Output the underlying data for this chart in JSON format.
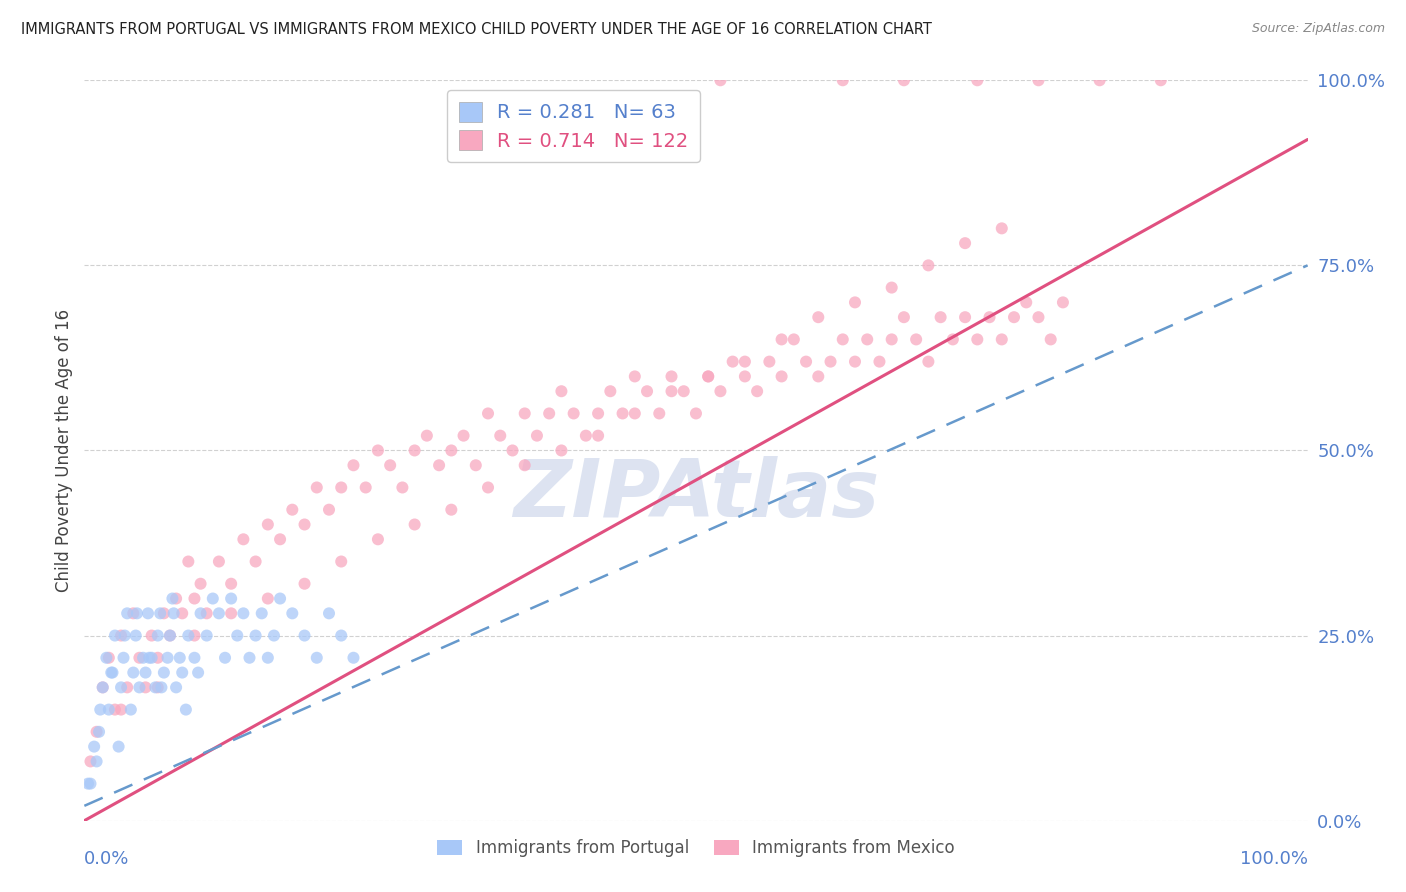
{
  "title": "IMMIGRANTS FROM PORTUGAL VS IMMIGRANTS FROM MEXICO CHILD POVERTY UNDER THE AGE OF 16 CORRELATION CHART",
  "source": "Source: ZipAtlas.com",
  "ylabel": "Child Poverty Under the Age of 16",
  "ytick_labels": [
    "0.0%",
    "25.0%",
    "50.0%",
    "75.0%",
    "100.0%"
  ],
  "ytick_values": [
    0,
    25,
    50,
    75,
    100
  ],
  "xtick_labels_bottom": [
    "0.0%",
    "100.0%"
  ],
  "xlim": [
    0,
    100
  ],
  "ylim": [
    0,
    100
  ],
  "portugal": {
    "R": 0.281,
    "N": 63,
    "color": "#a8c8f8",
    "line_color": "#6699cc",
    "scatter_alpha": 0.75,
    "marker_size": 75,
    "label": "Immigrants from Portugal",
    "reg_x0": 0,
    "reg_y0": 2,
    "reg_x1": 100,
    "reg_y1": 75
  },
  "mexico": {
    "R": 0.714,
    "N": 122,
    "color": "#f8a8c0",
    "line_color": "#e05080",
    "scatter_alpha": 0.75,
    "marker_size": 75,
    "label": "Immigrants from Mexico",
    "reg_x0": 0,
    "reg_y0": 0,
    "reg_x1": 100,
    "reg_y1": 92
  },
  "background_color": "#ffffff",
  "grid_color": "#cccccc",
  "right_axis_color": "#5580cc",
  "title_color": "#222222",
  "watermark_text": "ZIPAtlas",
  "watermark_color": "#aabbdd",
  "legend_box_color": "#ffffff",
  "portugal_x": [
    0.5,
    1.0,
    1.2,
    1.5,
    1.8,
    2.0,
    2.2,
    2.5,
    2.8,
    3.0,
    3.2,
    3.5,
    3.8,
    4.0,
    4.2,
    4.5,
    4.8,
    5.0,
    5.2,
    5.5,
    5.8,
    6.0,
    6.2,
    6.5,
    6.8,
    7.0,
    7.2,
    7.5,
    7.8,
    8.0,
    8.5,
    9.0,
    9.5,
    10.0,
    10.5,
    11.0,
    11.5,
    12.0,
    12.5,
    13.0,
    13.5,
    14.0,
    14.5,
    15.0,
    15.5,
    16.0,
    17.0,
    18.0,
    19.0,
    20.0,
    21.0,
    22.0,
    0.3,
    0.8,
    1.3,
    2.3,
    3.3,
    4.3,
    5.3,
    6.3,
    7.3,
    8.3,
    9.3
  ],
  "portugal_y": [
    5,
    8,
    12,
    18,
    22,
    15,
    20,
    25,
    10,
    18,
    22,
    28,
    15,
    20,
    25,
    18,
    22,
    20,
    28,
    22,
    18,
    25,
    28,
    20,
    22,
    25,
    30,
    18,
    22,
    20,
    25,
    22,
    28,
    25,
    30,
    28,
    22,
    30,
    25,
    28,
    22,
    25,
    28,
    22,
    25,
    30,
    28,
    25,
    22,
    28,
    25,
    22,
    5,
    10,
    15,
    20,
    25,
    28,
    22,
    18,
    28,
    15,
    20
  ],
  "mexico_x": [
    0.5,
    1.0,
    1.5,
    2.0,
    2.5,
    3.0,
    3.5,
    4.0,
    4.5,
    5.0,
    5.5,
    6.0,
    6.5,
    7.0,
    7.5,
    8.0,
    8.5,
    9.0,
    9.5,
    10.0,
    11.0,
    12.0,
    13.0,
    14.0,
    15.0,
    16.0,
    17.0,
    18.0,
    19.0,
    20.0,
    21.0,
    22.0,
    23.0,
    24.0,
    25.0,
    26.0,
    27.0,
    28.0,
    29.0,
    30.0,
    31.0,
    32.0,
    33.0,
    34.0,
    35.0,
    36.0,
    37.0,
    38.0,
    39.0,
    40.0,
    41.0,
    42.0,
    43.0,
    44.0,
    45.0,
    46.0,
    47.0,
    48.0,
    49.0,
    50.0,
    51.0,
    52.0,
    53.0,
    54.0,
    55.0,
    56.0,
    57.0,
    58.0,
    59.0,
    60.0,
    61.0,
    62.0,
    63.0,
    64.0,
    65.0,
    66.0,
    67.0,
    68.0,
    69.0,
    70.0,
    71.0,
    72.0,
    73.0,
    74.0,
    75.0,
    76.0,
    77.0,
    78.0,
    79.0,
    80.0,
    52.0,
    62.0,
    67.0,
    73.0,
    78.0,
    83.0,
    88.0,
    3.0,
    6.0,
    9.0,
    12.0,
    15.0,
    18.0,
    21.0,
    24.0,
    27.0,
    30.0,
    33.0,
    36.0,
    39.0,
    42.0,
    45.0,
    48.0,
    51.0,
    54.0,
    57.0,
    60.0,
    63.0,
    66.0,
    69.0,
    72.0,
    75.0
  ],
  "mexico_y": [
    8,
    12,
    18,
    22,
    15,
    25,
    18,
    28,
    22,
    18,
    25,
    22,
    28,
    25,
    30,
    28,
    35,
    30,
    32,
    28,
    35,
    32,
    38,
    35,
    40,
    38,
    42,
    40,
    45,
    42,
    45,
    48,
    45,
    50,
    48,
    45,
    50,
    52,
    48,
    50,
    52,
    48,
    55,
    52,
    50,
    55,
    52,
    55,
    58,
    55,
    52,
    55,
    58,
    55,
    60,
    58,
    55,
    60,
    58,
    55,
    60,
    58,
    62,
    60,
    58,
    62,
    60,
    65,
    62,
    60,
    62,
    65,
    62,
    65,
    62,
    65,
    68,
    65,
    62,
    68,
    65,
    68,
    65,
    68,
    65,
    68,
    70,
    68,
    65,
    70,
    100,
    100,
    100,
    100,
    100,
    100,
    100,
    15,
    18,
    25,
    28,
    30,
    32,
    35,
    38,
    40,
    42,
    45,
    48,
    50,
    52,
    55,
    58,
    60,
    62,
    65,
    68,
    70,
    72,
    75,
    78,
    80
  ]
}
